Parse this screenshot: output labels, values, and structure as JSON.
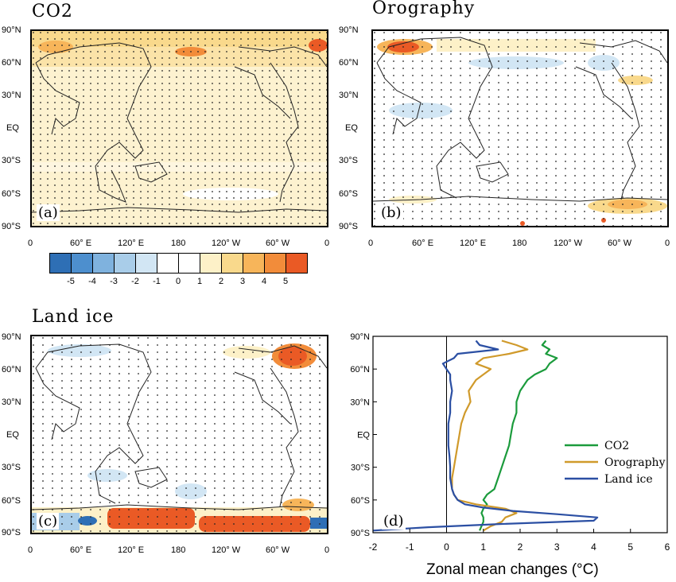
{
  "panels": {
    "a": {
      "title": "CO2",
      "tag": "(a)"
    },
    "b": {
      "title": "Orography",
      "tag": "(b)"
    },
    "c": {
      "title": "Land ice",
      "tag": "(c)"
    },
    "d": {
      "tag": "(d)"
    }
  },
  "lat_ticks": [
    "90°N",
    "60°N",
    "30°N",
    "EQ",
    "30°S",
    "60°S",
    "90°S"
  ],
  "lon_ticks": [
    "0",
    "60° E",
    "120° E",
    "180",
    "120° W",
    "60° W",
    "0"
  ],
  "colorbar": {
    "labels": [
      "-5",
      "-4",
      "-3",
      "-2",
      "-1",
      "0",
      "1",
      "2",
      "3",
      "4",
      "5"
    ],
    "colors": [
      "#2e6fb5",
      "#4d8fce",
      "#7fb2de",
      "#a9cde9",
      "#d2e6f4",
      "#ffffff",
      "#ffffff",
      "#fdf1c8",
      "#f9d98c",
      "#f7b55a",
      "#f28c3a",
      "#ea5a25"
    ]
  },
  "chart_data": {
    "type": "line",
    "xlabel": "Zonal mean changes (°C)",
    "ylabel": "",
    "xlim": [
      -2,
      6
    ],
    "ylim": [
      -90,
      90
    ],
    "x_ticks": [
      -2,
      -1,
      0,
      1,
      2,
      3,
      4,
      5,
      6
    ],
    "legend_position": "right",
    "series": [
      {
        "name": "CO2",
        "color": "#1b9b3c",
        "lat": [
          -88,
          -84,
          -80,
          -76,
          -72,
          -68,
          -64,
          -60,
          -55,
          -50,
          -40,
          -30,
          -20,
          -10,
          0,
          10,
          20,
          30,
          40,
          50,
          55,
          60,
          65,
          70,
          74,
          78,
          82,
          86
        ],
        "values": [
          0.9,
          0.95,
          1.0,
          1.0,
          0.95,
          1.0,
          1.1,
          1.0,
          1.1,
          1.3,
          1.4,
          1.5,
          1.6,
          1.7,
          1.75,
          1.8,
          1.9,
          1.9,
          2.0,
          2.2,
          2.4,
          2.7,
          2.8,
          3.0,
          2.7,
          2.8,
          2.6,
          2.7
        ]
      },
      {
        "name": "Orography",
        "color": "#d09a2b",
        "lat": [
          -88,
          -84,
          -80,
          -76,
          -72,
          -68,
          -64,
          -60,
          -55,
          -50,
          -40,
          -30,
          -20,
          -10,
          0,
          10,
          20,
          30,
          40,
          50,
          55,
          60,
          65,
          70,
          74,
          78,
          82,
          86
        ],
        "values": [
          1.0,
          1.2,
          1.5,
          1.6,
          1.9,
          1.6,
          0.8,
          0.3,
          0.2,
          0.15,
          0.15,
          0.2,
          0.25,
          0.3,
          0.35,
          0.4,
          0.5,
          0.65,
          0.6,
          0.8,
          1.0,
          1.2,
          0.8,
          1.0,
          1.7,
          2.2,
          1.9,
          1.5
        ]
      },
      {
        "name": "Land ice",
        "color": "#2b4fa3",
        "lat": [
          -88,
          -85,
          -82,
          -79,
          -76,
          -73,
          -70,
          -67,
          -64,
          -60,
          -55,
          -50,
          -40,
          -30,
          -20,
          -10,
          0,
          10,
          20,
          30,
          40,
          50,
          55,
          60,
          65,
          70,
          74,
          78,
          82,
          86
        ],
        "values": [
          -2.0,
          -0.5,
          1.5,
          4.0,
          4.1,
          3.0,
          1.8,
          1.0,
          0.5,
          0.3,
          0.2,
          0.15,
          0.1,
          0.1,
          0.08,
          0.05,
          0.05,
          0.05,
          0.1,
          0.1,
          0.15,
          0.1,
          0.1,
          0.0,
          -0.1,
          0.2,
          0.3,
          1.4,
          0.9,
          0.8
        ]
      }
    ]
  }
}
